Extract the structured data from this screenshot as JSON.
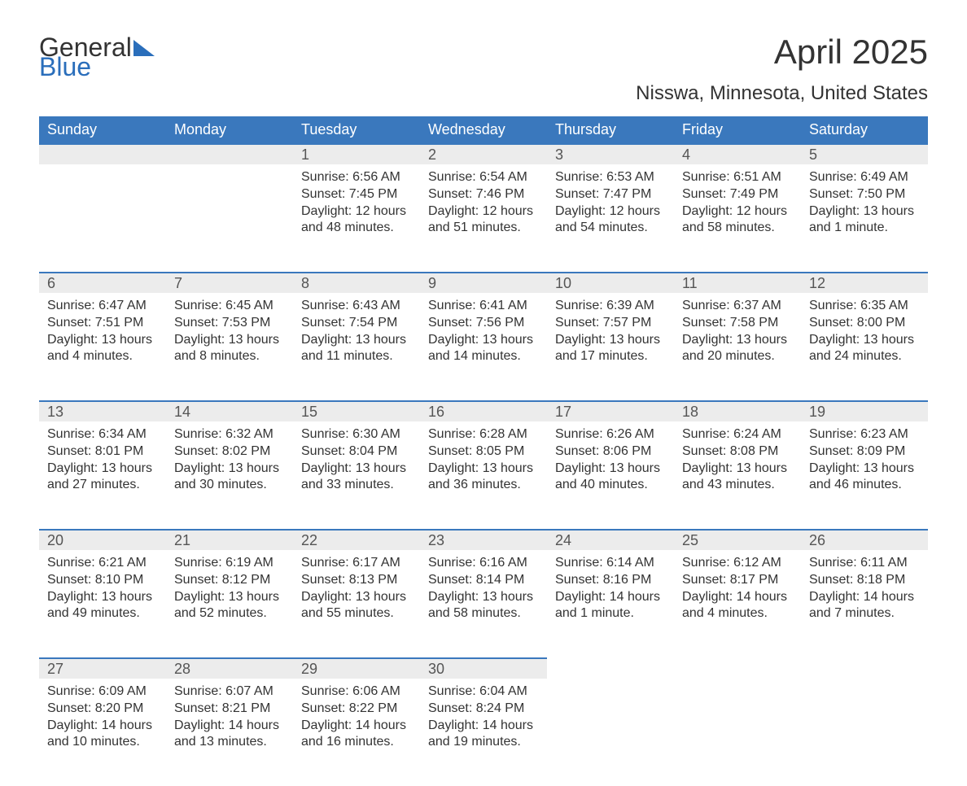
{
  "brand": {
    "word1": "General",
    "word2": "Blue"
  },
  "title": "April 2025",
  "subtitle": "Nisswa, Minnesota, United States",
  "colors": {
    "header_bg": "#3a78bd",
    "header_text": "#ffffff",
    "daynum_bg": "#ececec",
    "daynum_border": "#3a78bd",
    "body_text": "#333333",
    "background": "#ffffff",
    "brand_blue": "#2a6ebb"
  },
  "typography": {
    "title_fontsize": 42,
    "subtitle_fontsize": 24,
    "header_fontsize": 18,
    "daynum_fontsize": 18,
    "body_fontsize": 16,
    "logo_fontsize": 32
  },
  "day_headers": [
    "Sunday",
    "Monday",
    "Tuesday",
    "Wednesday",
    "Thursday",
    "Friday",
    "Saturday"
  ],
  "weeks": [
    [
      null,
      null,
      {
        "n": "1",
        "sunrise": "Sunrise: 6:56 AM",
        "sunset": "Sunset: 7:45 PM",
        "d1": "Daylight: 12 hours",
        "d2": "and 48 minutes."
      },
      {
        "n": "2",
        "sunrise": "Sunrise: 6:54 AM",
        "sunset": "Sunset: 7:46 PM",
        "d1": "Daylight: 12 hours",
        "d2": "and 51 minutes."
      },
      {
        "n": "3",
        "sunrise": "Sunrise: 6:53 AM",
        "sunset": "Sunset: 7:47 PM",
        "d1": "Daylight: 12 hours",
        "d2": "and 54 minutes."
      },
      {
        "n": "4",
        "sunrise": "Sunrise: 6:51 AM",
        "sunset": "Sunset: 7:49 PM",
        "d1": "Daylight: 12 hours",
        "d2": "and 58 minutes."
      },
      {
        "n": "5",
        "sunrise": "Sunrise: 6:49 AM",
        "sunset": "Sunset: 7:50 PM",
        "d1": "Daylight: 13 hours",
        "d2": "and 1 minute."
      }
    ],
    [
      {
        "n": "6",
        "sunrise": "Sunrise: 6:47 AM",
        "sunset": "Sunset: 7:51 PM",
        "d1": "Daylight: 13 hours",
        "d2": "and 4 minutes."
      },
      {
        "n": "7",
        "sunrise": "Sunrise: 6:45 AM",
        "sunset": "Sunset: 7:53 PM",
        "d1": "Daylight: 13 hours",
        "d2": "and 8 minutes."
      },
      {
        "n": "8",
        "sunrise": "Sunrise: 6:43 AM",
        "sunset": "Sunset: 7:54 PM",
        "d1": "Daylight: 13 hours",
        "d2": "and 11 minutes."
      },
      {
        "n": "9",
        "sunrise": "Sunrise: 6:41 AM",
        "sunset": "Sunset: 7:56 PM",
        "d1": "Daylight: 13 hours",
        "d2": "and 14 minutes."
      },
      {
        "n": "10",
        "sunrise": "Sunrise: 6:39 AM",
        "sunset": "Sunset: 7:57 PM",
        "d1": "Daylight: 13 hours",
        "d2": "and 17 minutes."
      },
      {
        "n": "11",
        "sunrise": "Sunrise: 6:37 AM",
        "sunset": "Sunset: 7:58 PM",
        "d1": "Daylight: 13 hours",
        "d2": "and 20 minutes."
      },
      {
        "n": "12",
        "sunrise": "Sunrise: 6:35 AM",
        "sunset": "Sunset: 8:00 PM",
        "d1": "Daylight: 13 hours",
        "d2": "and 24 minutes."
      }
    ],
    [
      {
        "n": "13",
        "sunrise": "Sunrise: 6:34 AM",
        "sunset": "Sunset: 8:01 PM",
        "d1": "Daylight: 13 hours",
        "d2": "and 27 minutes."
      },
      {
        "n": "14",
        "sunrise": "Sunrise: 6:32 AM",
        "sunset": "Sunset: 8:02 PM",
        "d1": "Daylight: 13 hours",
        "d2": "and 30 minutes."
      },
      {
        "n": "15",
        "sunrise": "Sunrise: 6:30 AM",
        "sunset": "Sunset: 8:04 PM",
        "d1": "Daylight: 13 hours",
        "d2": "and 33 minutes."
      },
      {
        "n": "16",
        "sunrise": "Sunrise: 6:28 AM",
        "sunset": "Sunset: 8:05 PM",
        "d1": "Daylight: 13 hours",
        "d2": "and 36 minutes."
      },
      {
        "n": "17",
        "sunrise": "Sunrise: 6:26 AM",
        "sunset": "Sunset: 8:06 PM",
        "d1": "Daylight: 13 hours",
        "d2": "and 40 minutes."
      },
      {
        "n": "18",
        "sunrise": "Sunrise: 6:24 AM",
        "sunset": "Sunset: 8:08 PM",
        "d1": "Daylight: 13 hours",
        "d2": "and 43 minutes."
      },
      {
        "n": "19",
        "sunrise": "Sunrise: 6:23 AM",
        "sunset": "Sunset: 8:09 PM",
        "d1": "Daylight: 13 hours",
        "d2": "and 46 minutes."
      }
    ],
    [
      {
        "n": "20",
        "sunrise": "Sunrise: 6:21 AM",
        "sunset": "Sunset: 8:10 PM",
        "d1": "Daylight: 13 hours",
        "d2": "and 49 minutes."
      },
      {
        "n": "21",
        "sunrise": "Sunrise: 6:19 AM",
        "sunset": "Sunset: 8:12 PM",
        "d1": "Daylight: 13 hours",
        "d2": "and 52 minutes."
      },
      {
        "n": "22",
        "sunrise": "Sunrise: 6:17 AM",
        "sunset": "Sunset: 8:13 PM",
        "d1": "Daylight: 13 hours",
        "d2": "and 55 minutes."
      },
      {
        "n": "23",
        "sunrise": "Sunrise: 6:16 AM",
        "sunset": "Sunset: 8:14 PM",
        "d1": "Daylight: 13 hours",
        "d2": "and 58 minutes."
      },
      {
        "n": "24",
        "sunrise": "Sunrise: 6:14 AM",
        "sunset": "Sunset: 8:16 PM",
        "d1": "Daylight: 14 hours",
        "d2": "and 1 minute."
      },
      {
        "n": "25",
        "sunrise": "Sunrise: 6:12 AM",
        "sunset": "Sunset: 8:17 PM",
        "d1": "Daylight: 14 hours",
        "d2": "and 4 minutes."
      },
      {
        "n": "26",
        "sunrise": "Sunrise: 6:11 AM",
        "sunset": "Sunset: 8:18 PM",
        "d1": "Daylight: 14 hours",
        "d2": "and 7 minutes."
      }
    ],
    [
      {
        "n": "27",
        "sunrise": "Sunrise: 6:09 AM",
        "sunset": "Sunset: 8:20 PM",
        "d1": "Daylight: 14 hours",
        "d2": "and 10 minutes."
      },
      {
        "n": "28",
        "sunrise": "Sunrise: 6:07 AM",
        "sunset": "Sunset: 8:21 PM",
        "d1": "Daylight: 14 hours",
        "d2": "and 13 minutes."
      },
      {
        "n": "29",
        "sunrise": "Sunrise: 6:06 AM",
        "sunset": "Sunset: 8:22 PM",
        "d1": "Daylight: 14 hours",
        "d2": "and 16 minutes."
      },
      {
        "n": "30",
        "sunrise": "Sunrise: 6:04 AM",
        "sunset": "Sunset: 8:24 PM",
        "d1": "Daylight: 14 hours",
        "d2": "and 19 minutes."
      },
      null,
      null,
      null
    ]
  ]
}
